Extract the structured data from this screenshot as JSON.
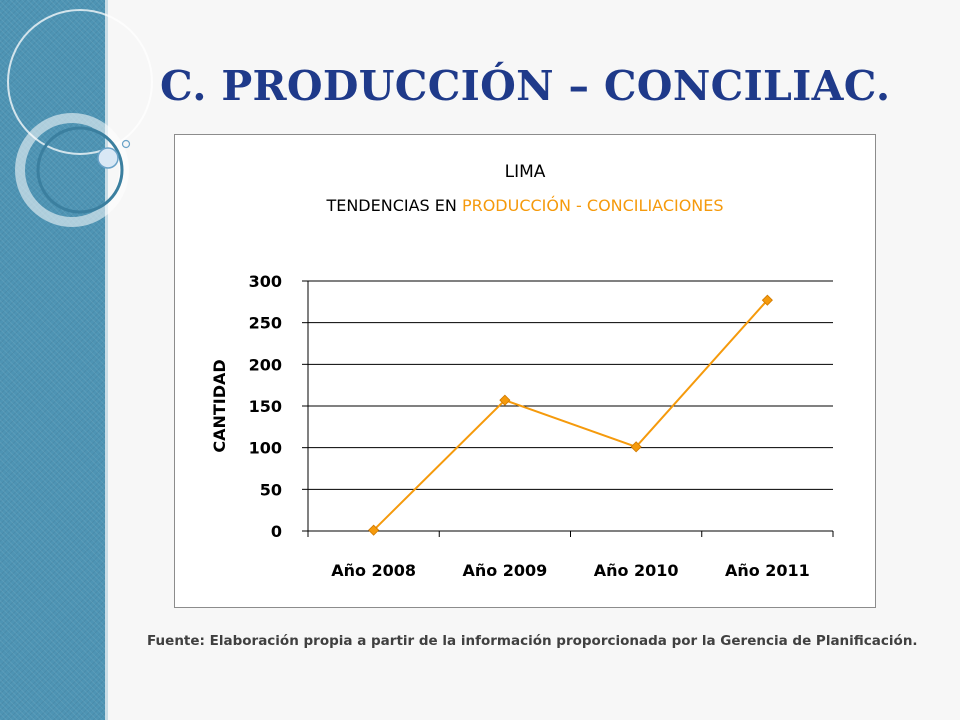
{
  "slide": {
    "title": "C. PRODUCCIÓN – CONCILIAC.",
    "source_note": "Fuente: Elaboración propia a partir de la información proporcionada por la Gerencia de Planificación."
  },
  "colors": {
    "title": "#1f3a8a",
    "series": "#f59a0c",
    "title_highlight": "#f59a0c",
    "side_band": "#4e94b4"
  },
  "chart_data": {
    "type": "line",
    "title_line1": "LIMA",
    "title_line2_prefix": "TENDENCIAS EN ",
    "title_line2_highlight": "PRODUCCIÓN - CONCILIACIONES",
    "categories": [
      "Año 2008",
      "Año 2009",
      "Año 2010",
      "Año 2011"
    ],
    "series": [
      {
        "values": [
          1,
          157,
          101,
          277
        ]
      }
    ],
    "ylabel": "CANTIDAD",
    "xlabel": "",
    "ylim": [
      0,
      300
    ],
    "yticks": [
      0,
      50,
      100,
      150,
      200,
      250,
      300
    ],
    "grid": true,
    "legend": "none"
  }
}
